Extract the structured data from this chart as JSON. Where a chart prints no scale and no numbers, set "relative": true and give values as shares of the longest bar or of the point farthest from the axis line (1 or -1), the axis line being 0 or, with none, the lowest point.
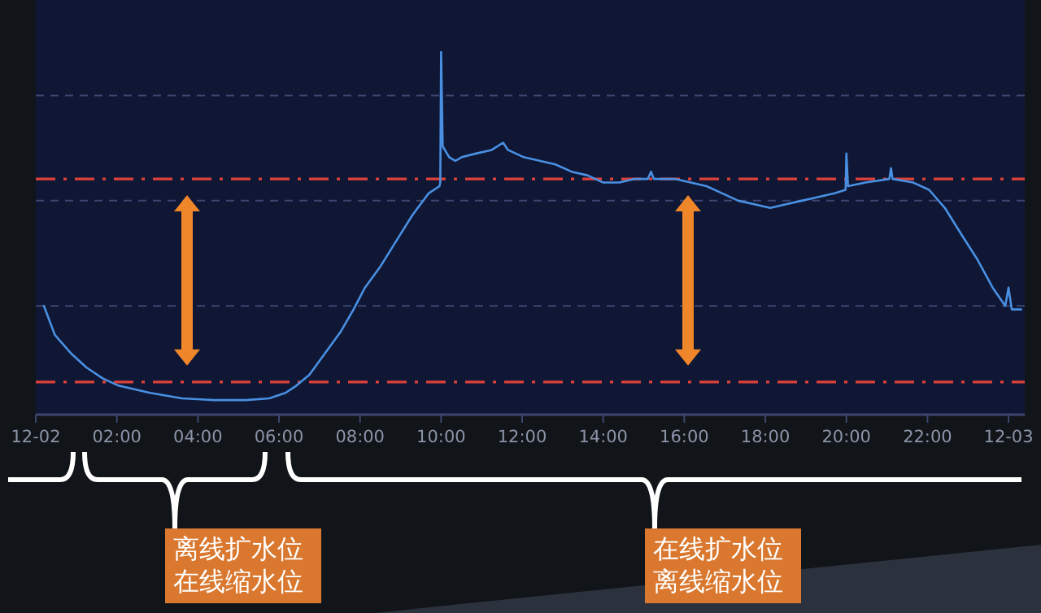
{
  "chart_data": {
    "type": "line",
    "relative": true,
    "xlim": [
      0,
      24.4
    ],
    "xticks": [
      {
        "value": 0,
        "label": "12-02"
      },
      {
        "value": 2,
        "label": "02:00"
      },
      {
        "value": 4,
        "label": "04:00"
      },
      {
        "value": 6,
        "label": "06:00"
      },
      {
        "value": 8,
        "label": "08:00"
      },
      {
        "value": 10,
        "label": "10:00"
      },
      {
        "value": 12,
        "label": "12:00"
      },
      {
        "value": 14,
        "label": "14:00"
      },
      {
        "value": 16,
        "label": "16:00"
      },
      {
        "value": 18,
        "label": "18:00"
      },
      {
        "value": 20,
        "label": "20:00"
      },
      {
        "value": 22,
        "label": "22:00"
      },
      {
        "value": 24,
        "label": "12-03"
      }
    ],
    "tick_labels": "x",
    "marker": "none",
    "line_style": "solid",
    "series": [
      {
        "color": "#4a90e2",
        "x": [
          0.2,
          0.47,
          0.86,
          1.25,
          1.65,
          2.04,
          2.82,
          3.61,
          4.39,
          5.18,
          5.76,
          6.16,
          6.43,
          6.75,
          7.14,
          7.53,
          7.84,
          8.12,
          8.51,
          8.9,
          9.29,
          9.69,
          9.96,
          9.98,
          10,
          10.04,
          10.2,
          10.35,
          10.51,
          10.86,
          11.25,
          11.53,
          11.65,
          12.04,
          12.43,
          12.82,
          13.22,
          13.61,
          14,
          14.39,
          14.78,
          15.1,
          15.18,
          15.25,
          15.76,
          16.16,
          16.55,
          16.94,
          17.33,
          17.73,
          18.12,
          18.51,
          18.9,
          19.29,
          19.69,
          19.98,
          20,
          20.04,
          20.47,
          21.06,
          21.1,
          21.14,
          21.65,
          22.04,
          22.43,
          22.82,
          23.22,
          23.61,
          23.92,
          24,
          24.08,
          24.31
        ],
        "values": [
          0.3,
          0.22,
          0.17,
          0.13,
          0.1,
          0.08,
          0.06,
          0.045,
          0.04,
          0.04,
          0.045,
          0.06,
          0.08,
          0.11,
          0.17,
          0.23,
          0.29,
          0.35,
          0.41,
          0.48,
          0.55,
          0.61,
          0.63,
          0.64,
          1,
          0.74,
          0.71,
          0.7,
          0.71,
          0.72,
          0.73,
          0.75,
          0.73,
          0.71,
          0.7,
          0.69,
          0.67,
          0.66,
          0.64,
          0.64,
          0.65,
          0.65,
          0.67,
          0.65,
          0.65,
          0.64,
          0.63,
          0.61,
          0.59,
          0.58,
          0.57,
          0.58,
          0.59,
          0.6,
          0.61,
          0.62,
          0.72,
          0.63,
          0.64,
          0.65,
          0.68,
          0.65,
          0.64,
          0.62,
          0.57,
          0.5,
          0.43,
          0.35,
          0.3,
          0.35,
          0.29,
          0.29
        ]
      }
    ],
    "ref_lines": [
      {
        "axis": "y",
        "value": 0.3,
        "color": "#3d4670",
        "line_style": "dotted"
      },
      {
        "axis": "y",
        "value": 0.59,
        "color": "#3d4670",
        "line_style": "dotted"
      },
      {
        "axis": "y",
        "value": 0.88,
        "color": "#3d4670",
        "line_style": "dotted"
      },
      {
        "axis": "y",
        "value": 0.65,
        "color": "#e0403a",
        "line_style": "dashed"
      },
      {
        "axis": "y",
        "value": 0.09,
        "color": "#e0403a",
        "line_style": "dashed"
      }
    ],
    "annotations": [
      "离线扩水位在线缩水位",
      "在线扩水位离线缩水位"
    ]
  }
}
